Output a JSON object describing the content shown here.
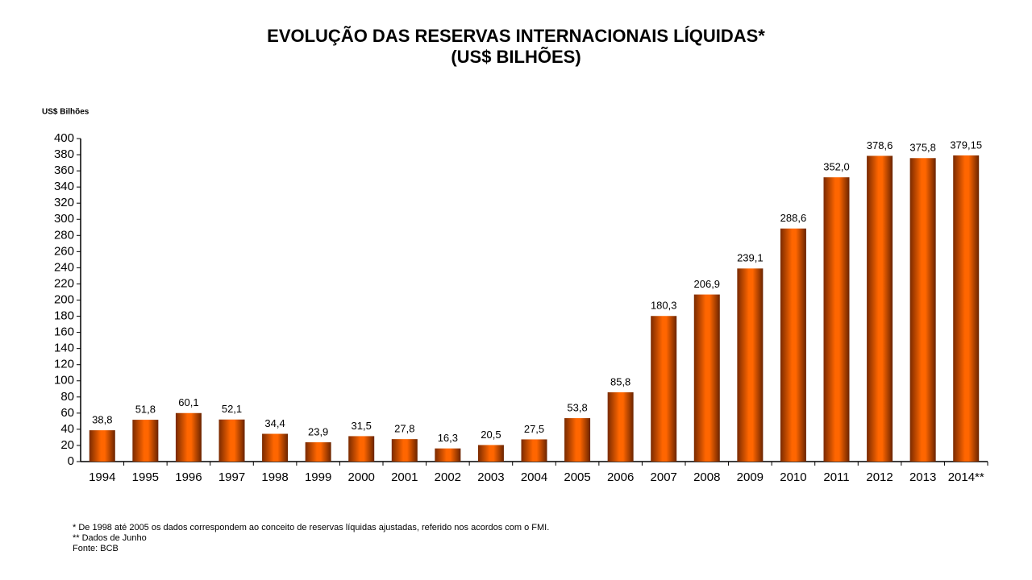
{
  "chart_data": {
    "type": "bar",
    "title": "EVOLUÇÃO DAS RESERVAS INTERNACIONAIS LÍQUIDAS*",
    "subtitle": "(US$ BILHÕES)",
    "y_label": "US$ Bilhões",
    "categories": [
      "1994",
      "1995",
      "1996",
      "1997",
      "1998",
      "1999",
      "2000",
      "2001",
      "2002",
      "2003",
      "2004",
      "2005",
      "2006",
      "2007",
      "2008",
      "2009",
      "2010",
      "2011",
      "2012",
      "2013",
      "2014**"
    ],
    "values": [
      38.8,
      51.8,
      60.1,
      52.1,
      34.4,
      23.9,
      31.5,
      27.8,
      16.3,
      20.5,
      27.5,
      53.8,
      85.8,
      180.3,
      206.9,
      239.1,
      288.6,
      352.0,
      378.6,
      375.8,
      379.15
    ],
    "value_labels": [
      "38,8",
      "51,8",
      "60,1",
      "52,1",
      "34,4",
      "23,9",
      "31,5",
      "27,8",
      "16,3",
      "20,5",
      "27,5",
      "53,8",
      "85,8",
      "180,3",
      "206,9",
      "239,1",
      "288,6",
      "352,0",
      "378,6",
      "375,8",
      "379,15"
    ],
    "color": "#ff6600",
    "ylim": [
      0,
      400
    ],
    "yticks": [
      0,
      20,
      40,
      60,
      80,
      100,
      120,
      140,
      160,
      180,
      200,
      220,
      240,
      260,
      280,
      300,
      320,
      340,
      360,
      380,
      400
    ],
    "notes": [
      "* De 1998 até 2005 os dados correspondem ao conceito de reservas líquidas ajustadas, referido nos acordos com o FMI.",
      "** Dados de Junho",
      "Fonte: BCB"
    ]
  }
}
